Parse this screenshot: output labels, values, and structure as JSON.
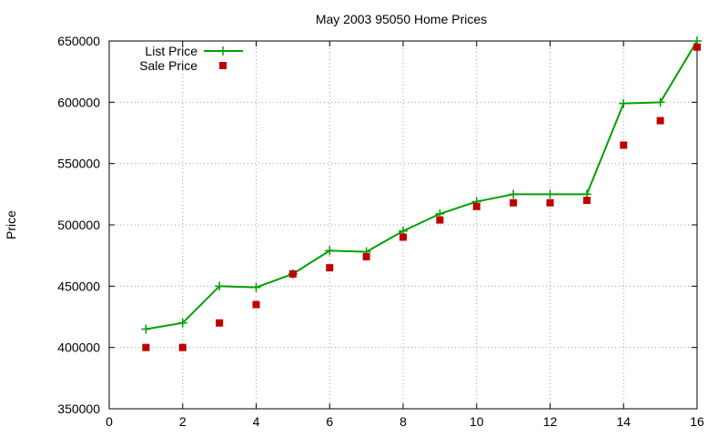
{
  "chart_data": {
    "type": "line",
    "title": "May 2003 95050 Home Prices",
    "xlabel": "",
    "ylabel": "Price",
    "xlim": [
      0,
      16
    ],
    "ylim": [
      350000,
      650000
    ],
    "x_ticks": [
      0,
      2,
      4,
      6,
      8,
      10,
      12,
      14,
      16
    ],
    "y_ticks": [
      350000,
      400000,
      450000,
      500000,
      550000,
      600000,
      650000
    ],
    "grid": true,
    "legend_position": "top-left",
    "series": [
      {
        "name": "List Price",
        "style": "line-with-plus-markers",
        "color": "#00a000",
        "x": [
          1,
          2,
          3,
          4,
          5,
          6,
          7,
          8,
          9,
          10,
          11,
          12,
          13,
          14,
          15,
          16
        ],
        "values": [
          415000,
          420000,
          450000,
          449000,
          460000,
          479000,
          478000,
          495000,
          509000,
          519000,
          525000,
          525000,
          525000,
          599000,
          600000,
          650000
        ]
      },
      {
        "name": "Sale Price",
        "style": "square-markers",
        "color": "#c00000",
        "x": [
          1,
          2,
          3,
          4,
          5,
          6,
          7,
          8,
          9,
          10,
          11,
          12,
          13,
          14,
          15,
          16
        ],
        "values": [
          400000,
          400000,
          420000,
          435000,
          460000,
          465000,
          474000,
          490000,
          504000,
          515000,
          518000,
          518000,
          520000,
          565000,
          585000,
          645000
        ]
      }
    ]
  }
}
